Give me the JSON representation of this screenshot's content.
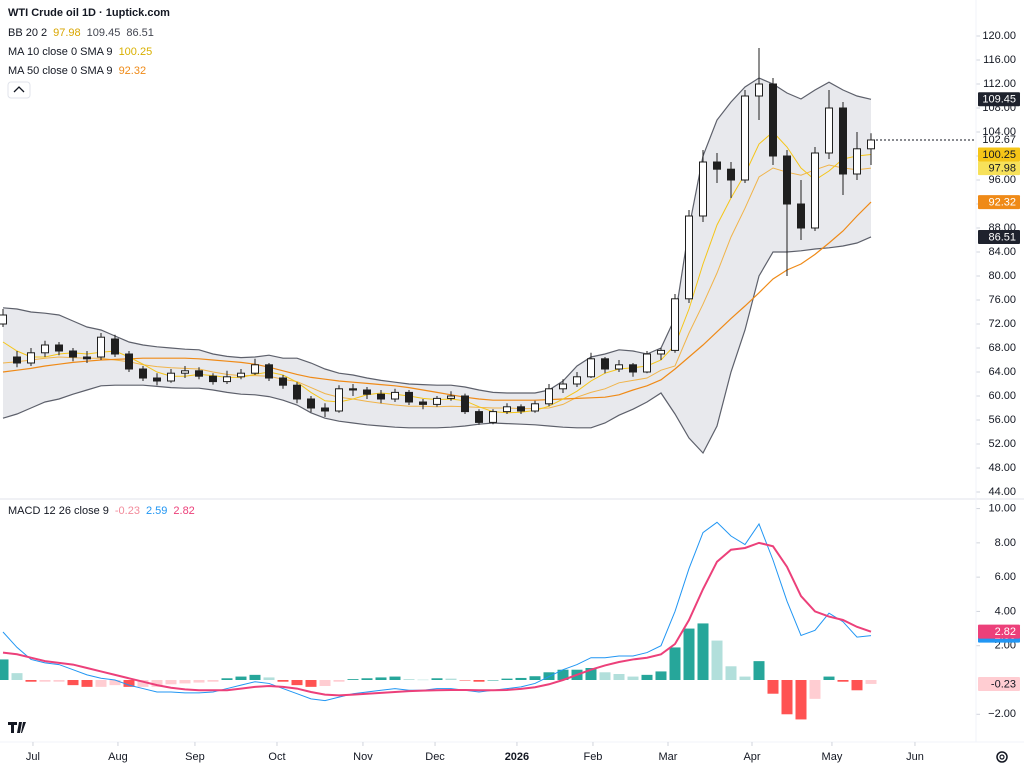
{
  "chart_data": {
    "type": "candlestick",
    "title": "WTI Crude oil  1D · 1uptick.com",
    "up_color": "#ffffff",
    "down_color": "#1f1f1f",
    "outline_color": "#1f1f1f",
    "ylim": [
      43,
      126
    ],
    "yticks": [
      {
        "value": 44,
        "label": "44.00"
      },
      {
        "value": 48,
        "label": "48.00"
      },
      {
        "value": 52,
        "label": "52.00"
      },
      {
        "value": 56,
        "label": "56.00"
      },
      {
        "value": 60,
        "label": "60.00"
      },
      {
        "value": 64,
        "label": "64.00"
      },
      {
        "value": 68,
        "label": "68.00"
      },
      {
        "value": 72,
        "label": "72.00"
      },
      {
        "value": 76,
        "label": "76.00"
      },
      {
        "value": 80,
        "label": "80.00"
      },
      {
        "value": 84,
        "label": "84.00"
      },
      {
        "value": 88,
        "label": "88.00"
      },
      {
        "value": 92,
        "label": "92.00"
      },
      {
        "value": 96,
        "label": "96.00"
      },
      {
        "value": 100,
        "label": "100.00"
      },
      {
        "value": 104,
        "label": "104.00"
      },
      {
        "value": 108,
        "label": "108.00"
      },
      {
        "value": 112,
        "label": "112.00"
      },
      {
        "value": 116,
        "label": "116.00"
      },
      {
        "value": 120,
        "label": "120.00"
      }
    ],
    "xticks": [
      {
        "value": 2.14,
        "label": "Jul"
      },
      {
        "value": 8.21,
        "label": "Aug"
      },
      {
        "value": 13.71,
        "label": "Sep"
      },
      {
        "value": 19.57,
        "label": "Oct"
      },
      {
        "value": 25.71,
        "label": "Nov"
      },
      {
        "value": 30.86,
        "label": "Dec"
      },
      {
        "value": 36.71,
        "label": "2026"
      },
      {
        "value": 42.14,
        "label": "Feb"
      },
      {
        "value": 47.5,
        "label": "Mar"
      },
      {
        "value": 53.5,
        "label": "Apr"
      },
      {
        "value": 59.21,
        "label": "May"
      },
      {
        "value": 65.14,
        "label": "Jun"
      }
    ],
    "candles": [
      [
        72,
        74.5,
        71.5,
        73.5
      ],
      [
        66.5,
        67.5,
        64.8,
        65.5
      ],
      [
        65.5,
        68,
        65,
        67.2
      ],
      [
        67.2,
        69.2,
        66.5,
        68.5
      ],
      [
        68.5,
        69,
        66.8,
        67.5
      ],
      [
        67.5,
        68,
        65.8,
        66.5
      ],
      [
        66.5,
        67.5,
        65.5,
        66.2
      ],
      [
        66.5,
        70.5,
        66,
        69.8
      ],
      [
        69.5,
        70.2,
        66.5,
        67
      ],
      [
        67,
        67.5,
        64,
        64.5
      ],
      [
        64.5,
        65,
        62.5,
        63
      ],
      [
        63,
        63.8,
        61.8,
        62.5
      ],
      [
        62.5,
        64.5,
        62.2,
        63.8
      ],
      [
        63.8,
        65,
        63,
        64.2
      ],
      [
        64.2,
        64.8,
        62.8,
        63.3
      ],
      [
        63.3,
        63.8,
        61.9,
        62.4
      ],
      [
        62.4,
        64.2,
        62,
        63.2
      ],
      [
        63.2,
        64.5,
        62.8,
        63.8
      ],
      [
        63.8,
        66.2,
        63.5,
        65.2
      ],
      [
        65.2,
        65.5,
        62.5,
        63
      ],
      [
        63,
        63.5,
        61.2,
        61.8
      ],
      [
        61.8,
        62.3,
        58.8,
        59.5
      ],
      [
        59.5,
        60,
        57.3,
        58
      ],
      [
        58,
        58.8,
        56.5,
        57.5
      ],
      [
        57.5,
        61.8,
        57.2,
        61.2
      ],
      [
        61.2,
        62,
        60,
        61
      ],
      [
        61,
        61.5,
        59.5,
        60.3
      ],
      [
        60.3,
        61,
        58.8,
        59.5
      ],
      [
        59.5,
        61.2,
        59,
        60.6
      ],
      [
        60.6,
        61,
        58.5,
        59
      ],
      [
        59,
        59.5,
        57.8,
        58.6
      ],
      [
        58.6,
        60,
        58.2,
        59.6
      ],
      [
        59.6,
        60.8,
        59.2,
        60
      ],
      [
        60,
        60.4,
        57,
        57.4
      ],
      [
        57.4,
        57.8,
        55.2,
        55.6
      ],
      [
        55.6,
        57.8,
        55.3,
        57.4
      ],
      [
        57.4,
        58.8,
        57,
        58.2
      ],
      [
        58.2,
        58.6,
        57,
        57.5
      ],
      [
        57.5,
        59.2,
        57.2,
        58.7
      ],
      [
        58.7,
        62,
        58.3,
        61.2
      ],
      [
        61.2,
        62.8,
        60.5,
        62
      ],
      [
        62,
        64,
        61.5,
        63.2
      ],
      [
        63.2,
        67.2,
        63,
        66.2
      ],
      [
        66.2,
        66.5,
        63.8,
        64.5
      ],
      [
        64.5,
        66,
        64,
        65.2
      ],
      [
        65.2,
        65.5,
        63.2,
        64
      ],
      [
        64,
        67.5,
        63.8,
        67
      ],
      [
        67,
        68,
        66,
        67.6
      ],
      [
        67.6,
        77,
        67.2,
        76.2
      ],
      [
        76.2,
        91,
        75.5,
        90
      ],
      [
        90,
        101,
        89,
        99
      ],
      [
        99,
        100.5,
        95.5,
        97.8
      ],
      [
        97.8,
        99,
        93,
        96
      ],
      [
        96,
        111,
        95.5,
        110
      ],
      [
        110,
        118,
        106,
        112
      ],
      [
        112,
        113,
        98.5,
        100
      ],
      [
        100,
        101,
        80,
        92
      ],
      [
        92,
        96,
        86,
        88
      ],
      [
        88,
        101.5,
        87.5,
        100.5
      ],
      [
        100.5,
        111,
        99.5,
        108
      ],
      [
        108,
        109,
        93.5,
        97
      ],
      [
        97,
        104,
        96,
        101.2
      ],
      [
        101.2,
        103.8,
        98.5,
        102.67
      ]
    ],
    "bb": {
      "label": "BB 20 2",
      "line_color": "#5d606b",
      "fill": "#d1d4dc",
      "mid_color": "#f0b44a",
      "upper": [
        74.7,
        74.5,
        74,
        73.8,
        73.5,
        72.5,
        71.5,
        71,
        70,
        69,
        68.5,
        68.2,
        68,
        67.8,
        67.7,
        67,
        66.6,
        66.4,
        66.5,
        66.8,
        66.3,
        66.3,
        65.5,
        64.5,
        63.8,
        63.5,
        63,
        62.6,
        62.3,
        62,
        61.9,
        61.8,
        61.8,
        61.5,
        61,
        60.6,
        60.5,
        60.5,
        60.5,
        61,
        62.5,
        65,
        66.5,
        67,
        67.7,
        67.5,
        67,
        68,
        73,
        88,
        100,
        106,
        109,
        111.5,
        113,
        112,
        110.5,
        109.5,
        111,
        112.3,
        111,
        110,
        109.45
      ],
      "mid": [
        65.5,
        65.7,
        66,
        66.3,
        66.5,
        66.4,
        66.3,
        66.3,
        66,
        65.7,
        65.2,
        64.9,
        64.7,
        64.6,
        64.5,
        64,
        63.6,
        63.4,
        63.4,
        63.3,
        62.8,
        62.4,
        61.4,
        60.4,
        59.8,
        59.5,
        59.1,
        58.8,
        58.5,
        58.3,
        58.3,
        58.2,
        58.3,
        58.2,
        58.1,
        58,
        58,
        57.9,
        57.9,
        58,
        58.6,
        59.8,
        60.6,
        61.2,
        62.2,
        62.6,
        63,
        64.3,
        65,
        70.5,
        75.3,
        80.5,
        86.5,
        91.3,
        96.5,
        98,
        97.3,
        96.8,
        97.7,
        98.5,
        98,
        97.7,
        97.98
      ],
      "lower": [
        56.3,
        57,
        58,
        59,
        59.5,
        60.3,
        61,
        61.7,
        61.8,
        61.8,
        61.8,
        61.6,
        61.4,
        61.3,
        61.3,
        61,
        60.6,
        60.3,
        60.2,
        59.9,
        59.3,
        58.5,
        57.2,
        56.3,
        55.8,
        55.5,
        55.2,
        55,
        54.8,
        54.7,
        54.7,
        54.7,
        54.8,
        55,
        55.3,
        55.5,
        55.4,
        55.3,
        55.2,
        55,
        54.8,
        54.7,
        54.7,
        55.5,
        56.8,
        57.8,
        59,
        60.5,
        57,
        53,
        50.5,
        55,
        64,
        71,
        80,
        84,
        84,
        84.2,
        84.5,
        84.7,
        85,
        85.5,
        86.51
      ]
    },
    "ma10": {
      "label": "MA 10 close 0 SMA 9",
      "color": "#f5c518",
      "values": [
        69,
        67.5,
        66.5,
        66.5,
        67,
        67.2,
        67,
        67.3,
        67.5,
        66.5,
        65.3,
        64,
        63.3,
        63.3,
        63.6,
        63.4,
        63.1,
        63.1,
        63.6,
        64,
        63.5,
        62.3,
        60.6,
        59.2,
        59,
        59.5,
        60.2,
        60.5,
        60.3,
        60,
        59.6,
        59.4,
        59.5,
        59.2,
        58.2,
        57.4,
        57.2,
        57.3,
        57.6,
        58.3,
        59.5,
        60.8,
        62.5,
        63.8,
        64.5,
        64.7,
        65,
        66,
        68.5,
        74.5,
        82,
        88.5,
        93,
        97,
        102,
        104,
        101.5,
        98,
        96,
        97.5,
        99.5,
        100,
        100.25
      ]
    },
    "ma50": {
      "label": "MA 50 close 0 SMA 9",
      "color": "#ef8a17",
      "values": [
        64,
        64.3,
        64.6,
        65,
        65.3,
        65.6,
        65.8,
        66,
        66.1,
        66.2,
        66.3,
        66.3,
        66.3,
        66.3,
        66.2,
        66,
        65.8,
        65.6,
        65.3,
        64.8,
        64.2,
        63.6,
        63.1,
        62.8,
        62.5,
        62.3,
        62.1,
        61.9,
        61.7,
        61.4,
        61,
        60.6,
        60.2,
        59.8,
        59.5,
        59.3,
        59.3,
        59.3,
        59.3,
        59.4,
        59.5,
        59.6,
        59.7,
        59.8,
        60.2,
        61,
        61.7,
        62.7,
        64.5,
        66.5,
        68.5,
        70.7,
        72.9,
        75,
        77.2,
        79.5,
        81,
        82,
        83.6,
        85.5,
        87.5,
        90,
        92.32
      ]
    },
    "macd": {
      "label": "MACD 12 26 close 9",
      "ylim": [
        -3.5,
        10.5
      ],
      "yticks": [
        {
          "value": -2,
          "label": "−2.00"
        },
        {
          "value": 2,
          "label": "2.00"
        },
        {
          "value": 4,
          "label": "4.00"
        },
        {
          "value": 6,
          "label": "6.00"
        },
        {
          "value": 8,
          "label": "8.00"
        },
        {
          "value": 10,
          "label": "10.00"
        }
      ],
      "macd_color": "#2196f3",
      "signal_color": "#ec407a",
      "hist_colors": {
        "grow_above": "#26a69a",
        "fall_above": "#b2dfdb",
        "grow_below": "#ff5252",
        "fall_below": "#ffcdd2"
      },
      "hist": [
        1.2,
        0.4,
        -0.1,
        -0.1,
        -0.1,
        -0.3,
        -0.4,
        -0.4,
        -0.3,
        -0.4,
        -0.4,
        -0.4,
        -0.25,
        -0.2,
        -0.15,
        -0.1,
        0.1,
        0.2,
        0.3,
        0.15,
        -0.1,
        -0.3,
        -0.4,
        -0.35,
        -0.1,
        0.05,
        0.1,
        0.15,
        0.2,
        0.05,
        0.02,
        0.1,
        0.08,
        -0.02,
        -0.1,
        0,
        0.08,
        0.12,
        0.22,
        0.45,
        0.6,
        0.6,
        0.7,
        0.45,
        0.35,
        0.2,
        0.3,
        0.5,
        1.9,
        3,
        3.3,
        2.3,
        0.8,
        0.2,
        1.1,
        -0.8,
        -2,
        -2.3,
        -1.1,
        0.2,
        -0.1,
        -0.6,
        -0.23
      ],
      "macd": [
        2.8,
        1.9,
        1.2,
        1,
        0.9,
        0.6,
        0.3,
        0.1,
        0,
        -0.3,
        -0.5,
        -0.7,
        -0.7,
        -0.75,
        -0.75,
        -0.7,
        -0.5,
        -0.3,
        -0.1,
        -0.2,
        -0.5,
        -0.8,
        -1.1,
        -1.2,
        -1,
        -0.8,
        -0.7,
        -0.6,
        -0.5,
        -0.6,
        -0.6,
        -0.5,
        -0.5,
        -0.6,
        -0.7,
        -0.6,
        -0.5,
        -0.4,
        -0.2,
        0.2,
        0.6,
        0.9,
        1.3,
        1.3,
        1.4,
        1.4,
        1.6,
        2,
        4,
        6.5,
        8.6,
        9.2,
        8.4,
        7.9,
        9.1,
        7,
        4.6,
        2.6,
        2.9,
        3.9,
        3.4,
        2.5,
        2.59
      ],
      "signal": [
        1.6,
        1.5,
        1.3,
        1.1,
        1,
        0.9,
        0.7,
        0.5,
        0.3,
        0.1,
        -0.1,
        -0.3,
        -0.45,
        -0.55,
        -0.6,
        -0.6,
        -0.6,
        -0.5,
        -0.4,
        -0.35,
        -0.4,
        -0.5,
        -0.7,
        -0.85,
        -0.9,
        -0.85,
        -0.8,
        -0.75,
        -0.7,
        -0.65,
        -0.62,
        -0.6,
        -0.58,
        -0.58,
        -0.6,
        -0.6,
        -0.58,
        -0.52,
        -0.42,
        -0.25,
        0,
        0.3,
        0.6,
        0.85,
        1.05,
        1.2,
        1.3,
        1.5,
        2.1,
        3.5,
        5.3,
        6.9,
        7.6,
        7.7,
        8,
        7.8,
        6.6,
        4.9,
        4,
        3.7,
        3.5,
        3.1,
        2.82
      ]
    }
  }
}
